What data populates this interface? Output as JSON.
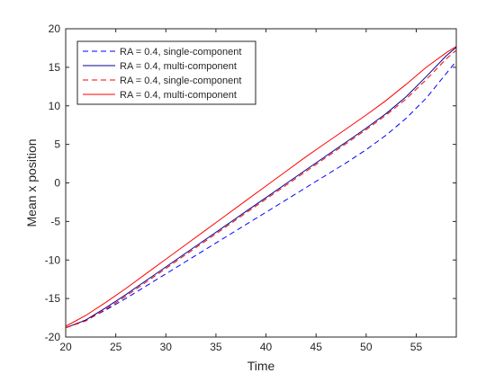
{
  "chart_data": {
    "type": "line",
    "xlabel": "Time",
    "ylabel": "Mean x position",
    "xlim": [
      20,
      59
    ],
    "ylim": [
      -20,
      20
    ],
    "xticks": [
      "20",
      "25",
      "30",
      "35",
      "40",
      "45",
      "50",
      "55"
    ],
    "yticks": [
      "-20",
      "-15",
      "-10",
      "-5",
      "0",
      "5",
      "10",
      "15",
      "20"
    ],
    "grid": false,
    "legend_position": "top-left",
    "series": [
      {
        "name": "RA = 0.4, single-component",
        "color": "#0000ff",
        "style": "dashed",
        "x": [
          20,
          22,
          24,
          26,
          28,
          30,
          32,
          34,
          36,
          38,
          40,
          42,
          44,
          46,
          48,
          50,
          52,
          54,
          56,
          58,
          59
        ],
        "y": [
          -18.8,
          -17.8,
          -16.5,
          -15.0,
          -13.4,
          -11.8,
          -10.2,
          -8.6,
          -7.0,
          -5.4,
          -3.8,
          -2.2,
          -0.6,
          1.0,
          2.6,
          4.3,
          6.2,
          8.4,
          11.0,
          14.2,
          15.8
        ]
      },
      {
        "name": "RA = 0.4, multi-component",
        "color": "#00008b",
        "style": "solid",
        "x": [
          20,
          22,
          24,
          26,
          28,
          30,
          32,
          34,
          36,
          38,
          40,
          42,
          44,
          46,
          48,
          50,
          52,
          54,
          56,
          58,
          59
        ],
        "y": [
          -18.8,
          -17.8,
          -16.2,
          -14.5,
          -12.7,
          -10.9,
          -9.1,
          -7.3,
          -5.5,
          -3.7,
          -1.9,
          -0.1,
          1.7,
          3.5,
          5.3,
          7.1,
          9.0,
          11.2,
          13.8,
          16.5,
          17.6
        ]
      },
      {
        "name": "RA = 0.4, single-component",
        "color": "#ff0000",
        "style": "dashed",
        "x": [
          20,
          22,
          24,
          26,
          28,
          30,
          32,
          34,
          36,
          38,
          40,
          42,
          44,
          46,
          48,
          50,
          52,
          54,
          56,
          58,
          59
        ],
        "y": [
          -18.8,
          -17.9,
          -16.4,
          -14.7,
          -12.9,
          -11.1,
          -9.3,
          -7.5,
          -5.7,
          -3.9,
          -2.1,
          -0.3,
          1.5,
          3.3,
          5.1,
          6.9,
          8.8,
          10.9,
          13.4,
          16.1,
          17.2
        ]
      },
      {
        "name": "RA = 0.4, multi-component",
        "color": "#ff0000",
        "style": "solid",
        "x": [
          20,
          22,
          24,
          26,
          28,
          30,
          32,
          34,
          36,
          38,
          40,
          42,
          44,
          46,
          48,
          50,
          52,
          54,
          56,
          58,
          59
        ],
        "y": [
          -18.6,
          -17.2,
          -15.5,
          -13.7,
          -11.8,
          -9.9,
          -8.0,
          -6.1,
          -4.2,
          -2.3,
          -0.4,
          1.5,
          3.4,
          5.2,
          7.0,
          8.8,
          10.7,
          12.8,
          15.0,
          16.9,
          17.7
        ]
      }
    ]
  }
}
